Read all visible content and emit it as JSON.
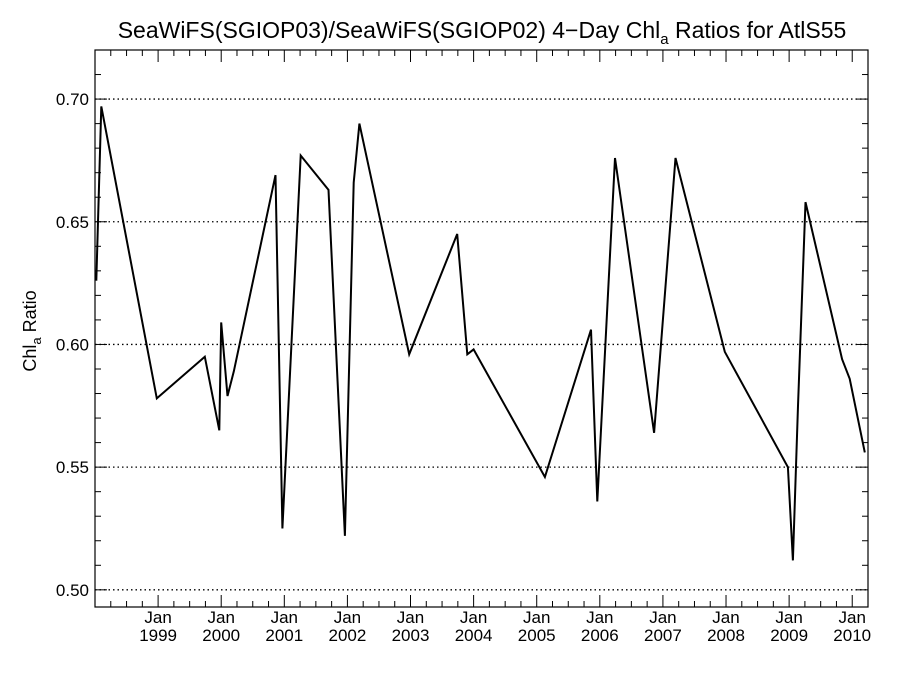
{
  "chart_data": {
    "type": "line",
    "title": {
      "prefix": "SeaWiFS(SGIOP03)/SeaWiFS(SGIOP02) 4−Day Chl",
      "subscript": "a",
      "suffix": " Ratios for AtlS55"
    },
    "ylabel": {
      "prefix": "Chl",
      "subscript": "a",
      "suffix": " Ratio"
    },
    "xlabel": "",
    "xlim": [
      1998.0,
      2010.25
    ],
    "ylim": [
      0.493,
      0.72
    ],
    "y_ticks": [
      0.5,
      0.55,
      0.6,
      0.65,
      0.7
    ],
    "y_tick_labels": [
      "0.50",
      "0.55",
      "0.60",
      "0.65",
      "0.70"
    ],
    "y_grid": "dotted",
    "x_ticks": [
      {
        "x": 1999.0,
        "month": "Jan",
        "year": "1999"
      },
      {
        "x": 2000.0,
        "month": "Jan",
        "year": "2000"
      },
      {
        "x": 2001.0,
        "month": "Jan",
        "year": "2001"
      },
      {
        "x": 2002.0,
        "month": "Jan",
        "year": "2002"
      },
      {
        "x": 2003.0,
        "month": "Jan",
        "year": "2003"
      },
      {
        "x": 2004.0,
        "month": "Jan",
        "year": "2004"
      },
      {
        "x": 2005.0,
        "month": "Jan",
        "year": "2005"
      },
      {
        "x": 2006.0,
        "month": "Jan",
        "year": "2006"
      },
      {
        "x": 2007.0,
        "month": "Jan",
        "year": "2007"
      },
      {
        "x": 2008.0,
        "month": "Jan",
        "year": "2008"
      },
      {
        "x": 2009.0,
        "month": "Jan",
        "year": "2009"
      },
      {
        "x": 2010.0,
        "month": "Jan",
        "year": "2010"
      }
    ],
    "x": [
      1998.02,
      1998.1,
      1998.98,
      1999.74,
      1999.97,
      2000.0,
      2000.1,
      2000.2,
      2000.86,
      2000.97,
      2001.26,
      2001.7,
      2001.96,
      2002.1,
      2002.19,
      2002.98,
      2003.74,
      2003.9,
      2004.0,
      2005.13,
      2005.86,
      2005.96,
      2006.24,
      2006.86,
      2007.2,
      2007.98,
      2008.98,
      2009.06,
      2009.14,
      2009.26,
      2009.84,
      2009.96,
      2010.2
    ],
    "series": [
      {
        "values": [
          0.626,
          0.697,
          0.578,
          0.595,
          0.565,
          0.609,
          0.579,
          0.589,
          0.669,
          0.525,
          0.677,
          0.663,
          0.522,
          0.666,
          0.69,
          0.596,
          0.645,
          0.596,
          0.598,
          0.546,
          0.606,
          0.536,
          0.676,
          0.564,
          0.676,
          0.597,
          0.55,
          0.512,
          0.575,
          0.658,
          0.594,
          0.586,
          0.556
        ],
        "color": "#000000"
      }
    ],
    "colors": {
      "line": "#000000",
      "axis": "#000000",
      "grid": "#000000",
      "background": "#ffffff"
    }
  }
}
